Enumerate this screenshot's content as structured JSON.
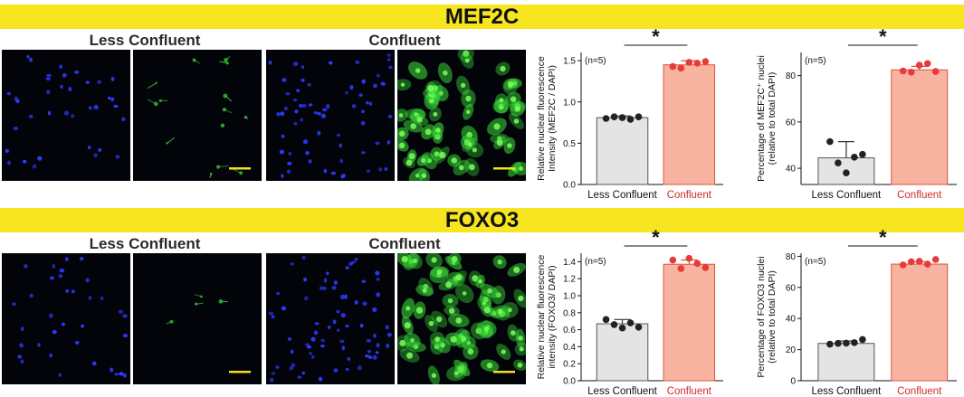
{
  "panels": [
    {
      "banner": "MEF2C",
      "cond_labels": [
        "Less Confluent",
        "Confluent"
      ],
      "colors": {
        "nuclear": "#2b3cff",
        "marker": "#38d838",
        "scale_bar": "#f2e21a"
      },
      "images": [
        {
          "condition": "Less Confluent",
          "channel": "DAPI",
          "nuclei": 38,
          "green_cells": 0
        },
        {
          "condition": "Less Confluent",
          "channel": "MEF2C",
          "nuclei": 0,
          "green_cells": 14
        },
        {
          "condition": "Confluent",
          "channel": "DAPI",
          "nuclei": 64,
          "green_cells": 0
        },
        {
          "condition": "Confluent",
          "channel": "MEF2C",
          "nuclei": 0,
          "green_cells": 58
        }
      ]
    },
    {
      "banner": "FOXO3",
      "cond_labels": [
        "Less Confluent",
        "Confluent"
      ],
      "colors": {
        "nuclear": "#2b3cff",
        "marker": "#38d838",
        "scale_bar": "#f2e21a"
      },
      "images": [
        {
          "condition": "Less Confluent",
          "channel": "DAPI",
          "nuclei": 34,
          "green_cells": 0
        },
        {
          "condition": "Less Confluent",
          "channel": "FOXO3",
          "nuclei": 0,
          "green_cells": 4
        },
        {
          "condition": "Confluent",
          "channel": "DAPI",
          "nuclei": 70,
          "green_cells": 0
        },
        {
          "condition": "Confluent",
          "channel": "FOXO3",
          "nuclei": 0,
          "green_cells": 62
        }
      ]
    }
  ],
  "chart_data": [
    {
      "type": "bar",
      "categories": [
        "Less Confluent",
        "Confluent"
      ],
      "values": [
        0.81,
        1.45
      ],
      "errors": [
        0.02,
        0.05
      ],
      "points": [
        [
          0.8,
          0.82,
          0.81,
          0.79,
          0.82
        ],
        [
          1.43,
          1.41,
          1.48,
          1.47,
          1.49
        ]
      ],
      "ylabel_lines": [
        "Relative nuclear fluorescence",
        "Intensity  (MEF2C / DAPI)"
      ],
      "ylim": [
        0,
        1.6
      ],
      "yticks": [
        "0.0",
        "0.5",
        "1.0",
        "1.5"
      ],
      "ytick_values": [
        0,
        0.5,
        1.0,
        1.5
      ],
      "n_label": "(n=5)",
      "significance": "*",
      "bar_colors": [
        "#e4e4e4",
        "#f8b4a0"
      ],
      "point_colors": [
        "#222222",
        "#e83a3a"
      ],
      "category_colors": [
        "#111111",
        "#d02b2b"
      ]
    },
    {
      "type": "bar",
      "categories": [
        "Less Confluent",
        "Confluent"
      ],
      "values": [
        44.5,
        82.5
      ],
      "errors": [
        7,
        1.5
      ],
      "points": [
        [
          51.5,
          42.3,
          38.0,
          44.8,
          46.0
        ],
        [
          82.0,
          81.5,
          84.5,
          85.2,
          81.8
        ]
      ],
      "ylabel_lines": [
        "Percentage of MEF2C⁺ nuclei",
        "(relative to total DAPI)"
      ],
      "ylim": [
        33,
        90
      ],
      "yticks": [
        "40",
        "60",
        "80"
      ],
      "ytick_values": [
        40,
        60,
        80
      ],
      "n_label": "(n=5)",
      "significance": "*",
      "bar_colors": [
        "#e4e4e4",
        "#f8b4a0"
      ],
      "point_colors": [
        "#222222",
        "#e83a3a"
      ],
      "category_colors": [
        "#111111",
        "#d02b2b"
      ]
    },
    {
      "type": "bar",
      "categories": [
        "Less Confluent",
        "Confluent"
      ],
      "values": [
        0.67,
        1.37
      ],
      "errors": [
        0.05,
        0.05
      ],
      "points": [
        [
          0.72,
          0.66,
          0.62,
          0.68,
          0.63
        ],
        [
          1.42,
          1.32,
          1.44,
          1.38,
          1.33
        ]
      ],
      "ylabel_lines": [
        "Relative nuclear fluorescence",
        "intensity (FOXO3/ DAPI)"
      ],
      "ylim": [
        0,
        1.5
      ],
      "yticks": [
        "0.0",
        "0.2",
        "0.4",
        "0.6",
        "0.8",
        "1.0",
        "1.2",
        "1.4"
      ],
      "ytick_values": [
        0,
        0.2,
        0.4,
        0.6,
        0.8,
        1.0,
        1.2,
        1.4
      ],
      "n_label": "(n=5)",
      "significance": "*",
      "bar_colors": [
        "#e4e4e4",
        "#f8b4a0"
      ],
      "point_colors": [
        "#222222",
        "#e83a3a"
      ],
      "category_colors": [
        "#111111",
        "#d02b2b"
      ]
    },
    {
      "type": "bar",
      "categories": [
        "Less Confluent",
        "Confluent"
      ],
      "values": [
        24,
        75
      ],
      "errors": [
        1.5,
        1.5
      ],
      "points": [
        [
          23.5,
          24.0,
          24.2,
          24.5,
          26.5
        ],
        [
          74.5,
          76.5,
          76.8,
          75.0,
          78.0
        ]
      ],
      "ylabel_lines": [
        "Percentage of FOXO3 nuclei",
        "(relative to total DAPI)"
      ],
      "ylim": [
        0,
        82
      ],
      "yticks": [
        "0",
        "20",
        "40",
        "60",
        "80"
      ],
      "ytick_values": [
        0,
        20,
        40,
        60,
        80
      ],
      "n_label": "(n=5)",
      "significance": "*",
      "bar_colors": [
        "#e4e4e4",
        "#f8b4a0"
      ],
      "point_colors": [
        "#222222",
        "#e83a3a"
      ],
      "category_colors": [
        "#111111",
        "#d02b2b"
      ]
    }
  ]
}
